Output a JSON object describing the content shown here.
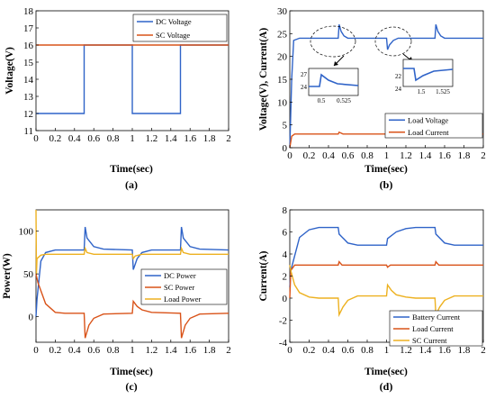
{
  "figure": {
    "captions": [
      "(a)",
      "(b)",
      "(c)",
      "(d)"
    ]
  },
  "colors": {
    "blue": "#2f63c8",
    "orange": "#d95319",
    "yellow": "#edb120"
  },
  "chart_data": [
    {
      "panel": "(a)",
      "type": "line",
      "xlabel": "Time(sec)",
      "ylabel": "Voltage(V)",
      "xlim": [
        0,
        2
      ],
      "ylim": [
        11,
        18
      ],
      "xticks": [
        "0",
        "0.2",
        "0.4",
        "0.6",
        "0.8",
        "1",
        "1.2",
        "1.4",
        "1.6",
        "1.8",
        "2"
      ],
      "yticks": [
        "11",
        "12",
        "13",
        "14",
        "15",
        "16",
        "17",
        "18"
      ],
      "legend_position": "top-right",
      "grid": false,
      "series": [
        {
          "name": "DC Voltage",
          "color": "blue",
          "x": [
            0,
            0.5,
            0.5,
            1.0,
            1.0,
            1.5,
            1.5,
            2.0
          ],
          "y": [
            12,
            12,
            16,
            16,
            12,
            12,
            16,
            16
          ]
        },
        {
          "name": "SC Voltage",
          "color": "orange",
          "x": [
            0,
            2.0
          ],
          "y": [
            16,
            16
          ]
        }
      ]
    },
    {
      "panel": "(b)",
      "type": "line",
      "xlabel": "Time(sec)",
      "ylabel": "Voltage(V), Current(A)",
      "xlim": [
        0,
        2
      ],
      "ylim": [
        0,
        30
      ],
      "xticks": [
        "0",
        "0.2",
        "0.4",
        "0.6",
        "0.8",
        "1",
        "1.2",
        "1.4",
        "1.6",
        "1.8",
        "2"
      ],
      "yticks": [
        "0",
        "5",
        "10",
        "15",
        "20",
        "25",
        "30"
      ],
      "legend_position": "bottom-right",
      "grid": false,
      "series": [
        {
          "name": "Load Voltage",
          "color": "blue",
          "x": [
            0,
            0.02,
            0.04,
            0.1,
            0.5,
            0.51,
            0.53,
            0.56,
            0.6,
            1.0,
            1.01,
            1.03,
            1.07,
            1.12,
            1.5,
            1.51,
            1.53,
            1.56,
            1.6,
            2.0
          ],
          "y": [
            0,
            15,
            23.5,
            24,
            24,
            27,
            25.5,
            24.5,
            24,
            24,
            21.5,
            22.5,
            23.5,
            24,
            24,
            27,
            25.5,
            24.5,
            24,
            24
          ]
        },
        {
          "name": "Load Current",
          "color": "orange",
          "x": [
            0,
            0.02,
            0.05,
            0.5,
            0.51,
            0.55,
            1.0,
            1.01,
            1.05,
            1.5,
            1.51,
            1.55,
            2.0
          ],
          "y": [
            0,
            2.5,
            3,
            3,
            3.4,
            3,
            3,
            2.7,
            3,
            3,
            3.4,
            3,
            3
          ]
        }
      ],
      "insets": [
        {
          "xticks": [
            "0.5",
            "0.525"
          ],
          "yticks": [
            "24",
            "27"
          ]
        },
        {
          "xticks": [
            "1.5",
            "1.525"
          ],
          "yticks": [
            "22",
            "24"
          ]
        }
      ]
    },
    {
      "panel": "(c)",
      "type": "line",
      "xlabel": "Time(sec)",
      "ylabel": "Power(W)",
      "xlim": [
        0,
        2
      ],
      "ylim": [
        -30,
        125
      ],
      "xticks": [
        "0",
        "0.2",
        "0.4",
        "0.6",
        "0.8",
        "1",
        "1.2",
        "1.4",
        "1.6",
        "1.8",
        "2"
      ],
      "yticks": [
        "0",
        "50",
        "100"
      ],
      "legend_position": "center-right",
      "grid": false,
      "series": [
        {
          "name": "DC Power",
          "color": "blue",
          "x": [
            0,
            0.01,
            0.05,
            0.1,
            0.2,
            0.5,
            0.51,
            0.53,
            0.6,
            0.7,
            1.0,
            1.01,
            1.05,
            1.1,
            1.2,
            1.5,
            1.51,
            1.53,
            1.6,
            1.7,
            2.0
          ],
          "y": [
            0,
            20,
            65,
            75,
            78,
            78,
            105,
            92,
            82,
            79,
            78,
            55,
            68,
            75,
            78,
            78,
            105,
            92,
            82,
            79,
            78
          ]
        },
        {
          "name": "SC Power",
          "color": "orange",
          "x": [
            0,
            0.02,
            0.1,
            0.2,
            0.3,
            0.5,
            0.51,
            0.55,
            0.6,
            0.7,
            1.0,
            1.01,
            1.05,
            1.1,
            1.2,
            1.5,
            1.51,
            1.55,
            1.6,
            1.7,
            2.0
          ],
          "y": [
            50,
            40,
            15,
            5,
            4,
            4,
            -25,
            -10,
            -2,
            3,
            4,
            18,
            12,
            8,
            5,
            4,
            -25,
            -10,
            -2,
            3,
            4
          ]
        },
        {
          "name": "Load Power",
          "color": "yellow",
          "x": [
            0,
            0.005,
            0.01,
            0.05,
            0.1,
            0.5,
            0.51,
            0.53,
            0.6,
            1.0,
            1.01,
            1.03,
            1.1,
            1.5,
            1.51,
            1.53,
            1.6,
            2.0
          ],
          "y": [
            125,
            50,
            68,
            72,
            73,
            73,
            80,
            75,
            73,
            73,
            68,
            71,
            73,
            73,
            80,
            75,
            73,
            73
          ]
        }
      ]
    },
    {
      "panel": "(d)",
      "type": "line",
      "xlabel": "Time(sec)",
      "ylabel": "Current(A)",
      "xlim": [
        0,
        2
      ],
      "ylim": [
        -4,
        8
      ],
      "xticks": [
        "0",
        "0.2",
        "0.4",
        "0.6",
        "0.8",
        "1",
        "1.2",
        "1.4",
        "1.6",
        "1.8",
        "2"
      ],
      "yticks": [
        "-4",
        "-2",
        "0",
        "2",
        "4",
        "6",
        "8"
      ],
      "legend_position": "bottom-right",
      "grid": false,
      "series": [
        {
          "name": "Battery Current",
          "color": "blue",
          "x": [
            0,
            0.01,
            0.1,
            0.2,
            0.3,
            0.5,
            0.51,
            0.6,
            0.7,
            0.8,
            1.0,
            1.01,
            1.1,
            1.2,
            1.3,
            1.5,
            1.51,
            1.6,
            1.7,
            1.8,
            2.0
          ],
          "y": [
            1,
            2.5,
            5.5,
            6.2,
            6.4,
            6.4,
            5.8,
            5.0,
            4.8,
            4.8,
            4.8,
            5.4,
            6.0,
            6.3,
            6.4,
            6.4,
            5.8,
            5.0,
            4.8,
            4.8,
            4.8
          ]
        },
        {
          "name": "Load Current",
          "color": "orange",
          "x": [
            0,
            0.01,
            0.05,
            0.5,
            0.51,
            0.54,
            1.0,
            1.01,
            1.04,
            1.5,
            1.51,
            1.54,
            2.0
          ],
          "y": [
            0,
            2.5,
            3,
            3,
            3.3,
            3,
            3,
            2.8,
            3,
            3,
            3.3,
            3,
            3
          ]
        },
        {
          "name": "SC Current",
          "color": "yellow",
          "x": [
            0,
            0.01,
            0.05,
            0.1,
            0.2,
            0.3,
            0.5,
            0.51,
            0.55,
            0.6,
            0.7,
            1.0,
            1.01,
            1.05,
            1.1,
            1.2,
            1.3,
            1.5,
            1.51,
            1.55,
            1.6,
            1.7,
            2.0
          ],
          "y": [
            3,
            2.5,
            1.2,
            0.5,
            0.1,
            0,
            0,
            -1.5,
            -0.8,
            -0.2,
            0.2,
            0.2,
            1.2,
            0.7,
            0.3,
            0.1,
            0,
            0,
            -1.5,
            -0.8,
            -0.2,
            0.2,
            0.2
          ]
        }
      ]
    }
  ]
}
